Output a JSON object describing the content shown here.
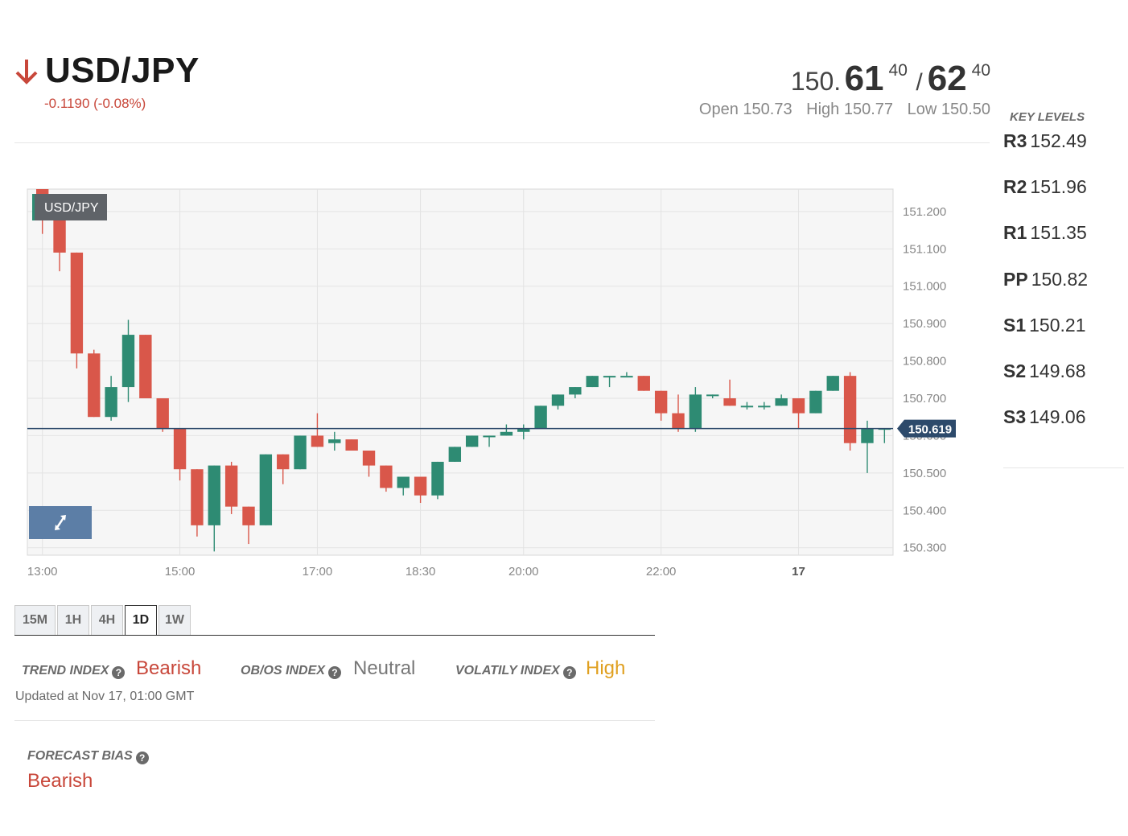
{
  "header": {
    "pair": "USD/JPY",
    "change": "-0.1190 (-0.08%)",
    "quote_base": "150.",
    "bid_big": "61",
    "bid_pip": "40",
    "slash": "/",
    "ask_big": "62",
    "ask_pip": "40",
    "open": "Open 150.73",
    "high": "High 150.77",
    "low": "Low 150.50"
  },
  "key_levels": {
    "title": "KEY LEVELS",
    "items": [
      {
        "name": "R3",
        "value": "152.49"
      },
      {
        "name": "R2",
        "value": "151.96"
      },
      {
        "name": "R1",
        "value": "151.35"
      },
      {
        "name": "PP",
        "value": "150.82"
      },
      {
        "name": "S1",
        "value": "150.21"
      },
      {
        "name": "S2",
        "value": "149.68"
      },
      {
        "name": "S3",
        "value": "149.06"
      }
    ]
  },
  "tabs": [
    "15M",
    "1H",
    "4H",
    "1D",
    "1W"
  ],
  "active_tab": "1D",
  "indices": {
    "trend_label": "TREND INDEX",
    "trend_value": "Bearish",
    "obos_label": "OB/OS INDEX",
    "obos_value": "Neutral",
    "volatility_label": "VOLATILY INDEX",
    "volatility_value": "High",
    "updated": "Updated at Nov 17, 01:00 GMT",
    "forecast_label": "FORECAST BIAS",
    "forecast_value": "Bearish",
    "help_glyph": "?"
  },
  "colors": {
    "bull": "#2e8b73",
    "bear": "#d9574a",
    "accent_red": "#c8473a",
    "amber": "#e0a020",
    "price_tag": "#2d4a6b"
  },
  "chart_data": {
    "type": "candlestick",
    "label": "USD/JPY",
    "current_price": 150.619,
    "current_price_label": "150.619",
    "ylim": [
      150.28,
      151.26
    ],
    "y_ticks": [
      "151.200",
      "151.100",
      "151.000",
      "150.900",
      "150.800",
      "150.700",
      "150.600",
      "150.500",
      "150.400",
      "150.300"
    ],
    "y_tick_values": [
      151.2,
      151.1,
      151.0,
      150.9,
      150.8,
      150.7,
      150.6,
      150.5,
      150.4,
      150.3
    ],
    "x_ticks": [
      {
        "label": "13:00",
        "index": 0
      },
      {
        "label": "15:00",
        "index": 8
      },
      {
        "label": "17:00",
        "index": 16
      },
      {
        "label": "18:30",
        "index": 22
      },
      {
        "label": "20:00",
        "index": 28
      },
      {
        "label": "22:00",
        "index": 36
      },
      {
        "label": "17",
        "index": 44,
        "bold": true
      }
    ],
    "candles": [
      {
        "o": 151.26,
        "h": 151.26,
        "c": 151.18,
        "l": 151.14
      },
      {
        "o": 151.18,
        "h": 151.2,
        "c": 151.09,
        "l": 151.04
      },
      {
        "o": 151.09,
        "h": 151.09,
        "c": 150.82,
        "l": 150.78
      },
      {
        "o": 150.82,
        "h": 150.83,
        "c": 150.65,
        "l": 150.65
      },
      {
        "o": 150.65,
        "h": 150.76,
        "c": 150.73,
        "l": 150.64
      },
      {
        "o": 150.73,
        "h": 150.91,
        "c": 150.87,
        "l": 150.69
      },
      {
        "o": 150.87,
        "h": 150.87,
        "c": 150.7,
        "l": 150.7
      },
      {
        "o": 150.7,
        "h": 150.7,
        "c": 150.62,
        "l": 150.61
      },
      {
        "o": 150.62,
        "h": 150.62,
        "c": 150.51,
        "l": 150.48
      },
      {
        "o": 150.51,
        "h": 150.51,
        "c": 150.36,
        "l": 150.33
      },
      {
        "o": 150.36,
        "h": 150.52,
        "c": 150.52,
        "l": 150.29
      },
      {
        "o": 150.52,
        "h": 150.53,
        "c": 150.41,
        "l": 150.39
      },
      {
        "o": 150.41,
        "h": 150.41,
        "c": 150.36,
        "l": 150.31
      },
      {
        "o": 150.36,
        "h": 150.55,
        "c": 150.55,
        "l": 150.36
      },
      {
        "o": 150.55,
        "h": 150.55,
        "c": 150.51,
        "l": 150.47
      },
      {
        "o": 150.51,
        "h": 150.6,
        "c": 150.6,
        "l": 150.51
      },
      {
        "o": 150.6,
        "h": 150.66,
        "c": 150.57,
        "l": 150.57
      },
      {
        "o": 150.58,
        "h": 150.61,
        "c": 150.59,
        "l": 150.56
      },
      {
        "o": 150.59,
        "h": 150.59,
        "c": 150.56,
        "l": 150.56
      },
      {
        "o": 150.56,
        "h": 150.56,
        "c": 150.52,
        "l": 150.49
      },
      {
        "o": 150.52,
        "h": 150.52,
        "c": 150.46,
        "l": 150.45
      },
      {
        "o": 150.46,
        "h": 150.49,
        "c": 150.49,
        "l": 150.44
      },
      {
        "o": 150.49,
        "h": 150.49,
        "c": 150.44,
        "l": 150.42
      },
      {
        "o": 150.44,
        "h": 150.53,
        "c": 150.53,
        "l": 150.43
      },
      {
        "o": 150.53,
        "h": 150.57,
        "c": 150.57,
        "l": 150.53
      },
      {
        "o": 150.57,
        "h": 150.6,
        "c": 150.6,
        "l": 150.57
      },
      {
        "o": 150.6,
        "h": 150.6,
        "c": 150.6,
        "l": 150.57
      },
      {
        "o": 150.6,
        "h": 150.63,
        "c": 150.61,
        "l": 150.6
      },
      {
        "o": 150.61,
        "h": 150.63,
        "c": 150.62,
        "l": 150.59
      },
      {
        "o": 150.62,
        "h": 150.68,
        "c": 150.68,
        "l": 150.62
      },
      {
        "o": 150.68,
        "h": 150.71,
        "c": 150.71,
        "l": 150.67
      },
      {
        "o": 150.71,
        "h": 150.73,
        "c": 150.73,
        "l": 150.7
      },
      {
        "o": 150.73,
        "h": 150.76,
        "c": 150.76,
        "l": 150.73
      },
      {
        "o": 150.76,
        "h": 150.76,
        "c": 150.76,
        "l": 150.73
      },
      {
        "o": 150.76,
        "h": 150.77,
        "c": 150.76,
        "l": 150.76
      },
      {
        "o": 150.76,
        "h": 150.76,
        "c": 150.72,
        "l": 150.72
      },
      {
        "o": 150.72,
        "h": 150.72,
        "c": 150.66,
        "l": 150.64
      },
      {
        "o": 150.66,
        "h": 150.71,
        "c": 150.62,
        "l": 150.61
      },
      {
        "o": 150.62,
        "h": 150.73,
        "c": 150.71,
        "l": 150.61
      },
      {
        "o": 150.71,
        "h": 150.71,
        "c": 150.71,
        "l": 150.7
      },
      {
        "o": 150.7,
        "h": 150.75,
        "c": 150.68,
        "l": 150.68
      },
      {
        "o": 150.68,
        "h": 150.69,
        "c": 150.68,
        "l": 150.67
      },
      {
        "o": 150.68,
        "h": 150.69,
        "c": 150.68,
        "l": 150.67
      },
      {
        "o": 150.68,
        "h": 150.71,
        "c": 150.7,
        "l": 150.68
      },
      {
        "o": 150.7,
        "h": 150.7,
        "c": 150.66,
        "l": 150.62
      },
      {
        "o": 150.66,
        "h": 150.72,
        "c": 150.72,
        "l": 150.66
      },
      {
        "o": 150.72,
        "h": 150.76,
        "c": 150.76,
        "l": 150.72
      },
      {
        "o": 150.76,
        "h": 150.77,
        "c": 150.58,
        "l": 150.56
      },
      {
        "o": 150.58,
        "h": 150.64,
        "c": 150.62,
        "l": 150.5
      },
      {
        "o": 150.62,
        "h": 150.62,
        "c": 150.62,
        "l": 150.58
      }
    ]
  }
}
